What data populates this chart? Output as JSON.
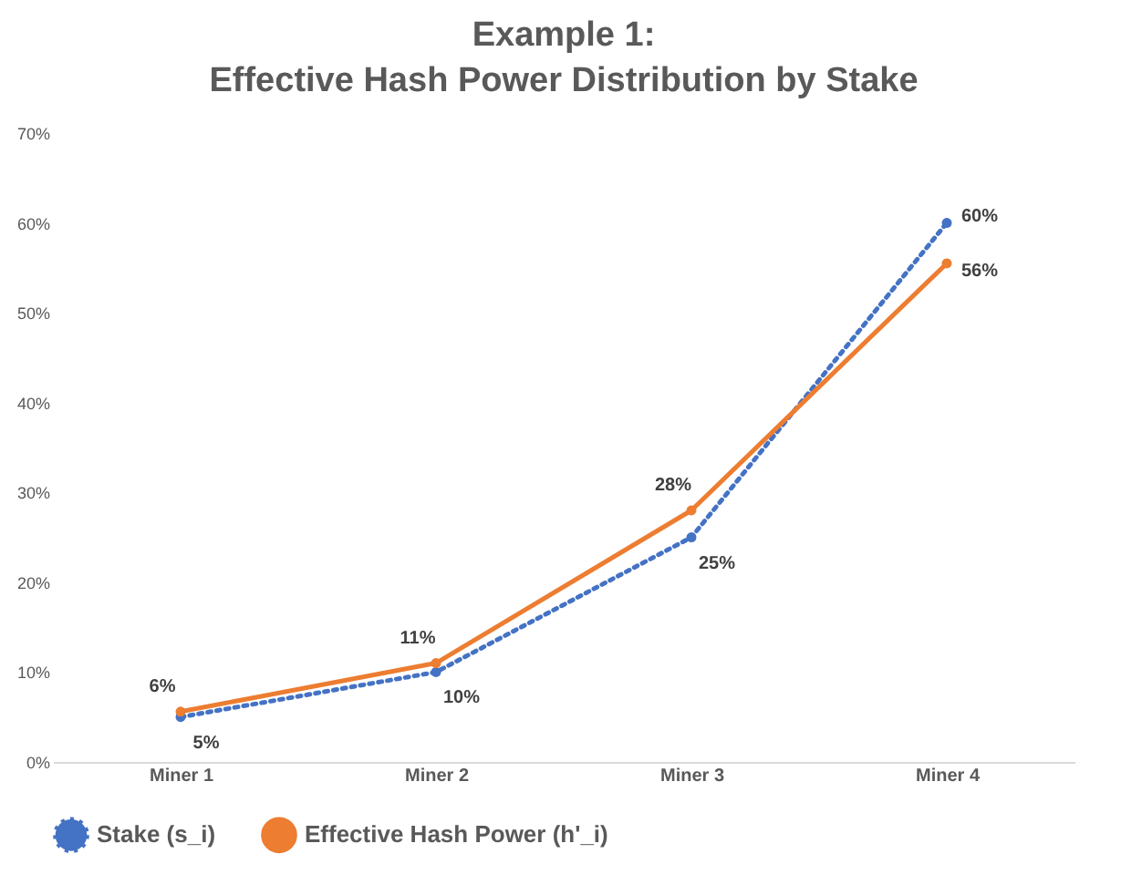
{
  "chart_data": {
    "type": "line",
    "title": "Example 1:\nEffective Hash Power Distribution by Stake",
    "categories": [
      "Miner 1",
      "Miner 2",
      "Miner 3",
      "Miner 4"
    ],
    "series": [
      {
        "name": "Stake (s_i)",
        "color": "#4472c4",
        "line_style": "dotted",
        "values": [
          5,
          10,
          25,
          60
        ],
        "value_labels": [
          "5%",
          "10%",
          "25%",
          "60%"
        ]
      },
      {
        "name": "Effective Hash Power (h'_i)",
        "color": "#ed7d31",
        "line_style": "solid",
        "values": [
          5.6,
          11,
          28,
          55.5
        ],
        "value_labels": [
          "6%",
          "11%",
          "28%",
          "56%"
        ]
      }
    ],
    "ylim": [
      0,
      70
    ],
    "yticks": [
      {
        "value": 0,
        "label": "0%"
      },
      {
        "value": 10,
        "label": "10%"
      },
      {
        "value": 20,
        "label": "20%"
      },
      {
        "value": 30,
        "label": "30%"
      },
      {
        "value": 40,
        "label": "40%"
      },
      {
        "value": 50,
        "label": "50%"
      },
      {
        "value": 60,
        "label": "60%"
      },
      {
        "value": 70,
        "label": "70%"
      }
    ],
    "grid": false,
    "legend": "bottom",
    "marker": "circle"
  }
}
